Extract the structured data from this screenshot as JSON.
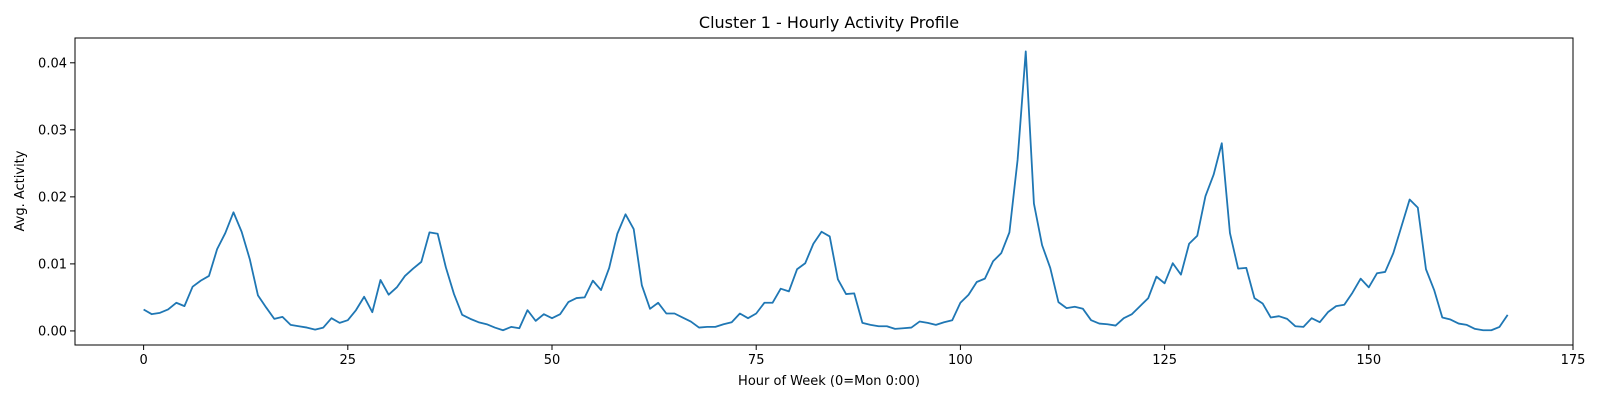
{
  "chart_data": {
    "type": "line",
    "title": "Cluster 1 - Hourly Activity Profile",
    "xlabel": "Hour of Week (0=Mon 0:00)",
    "ylabel": "Avg. Activity",
    "xlim": [
      -8.4,
      175
    ],
    "ylim": [
      -0.0021,
      0.0437
    ],
    "grid": false,
    "line_color": "#1f77b4",
    "x_ticks": [
      0,
      25,
      50,
      75,
      100,
      125,
      150,
      175
    ],
    "x_tick_labels": [
      "0",
      "25",
      "50",
      "75",
      "100",
      "125",
      "150",
      "175"
    ],
    "y_ticks": [
      0.0,
      0.01,
      0.02,
      0.03,
      0.04
    ],
    "y_tick_labels": [
      "0.00",
      "0.01",
      "0.02",
      "0.03",
      "0.04"
    ],
    "series": [
      {
        "x_start": 0,
        "values": [
          0.0032,
          0.0025,
          0.0027,
          0.0032,
          0.0042,
          0.0037,
          0.0066,
          0.0075,
          0.0082,
          0.0122,
          0.0146,
          0.0177,
          0.0148,
          0.0107,
          0.0053,
          0.0035,
          0.0018,
          0.0021,
          0.0009,
          0.0007,
          0.0005,
          0.0002,
          0.0005,
          0.0019,
          0.0012,
          0.0016,
          0.0031,
          0.0051,
          0.0028,
          0.0076,
          0.0054,
          0.0065,
          0.0082,
          0.0093,
          0.0103,
          0.0147,
          0.0145,
          0.0095,
          0.0055,
          0.0024,
          0.0018,
          0.0013,
          0.001,
          0.0005,
          0.0001,
          0.0006,
          0.0004,
          0.0031,
          0.0015,
          0.0025,
          0.0019,
          0.0025,
          0.0043,
          0.0049,
          0.005,
          0.0075,
          0.0061,
          0.0094,
          0.0145,
          0.0174,
          0.0152,
          0.0068,
          0.0033,
          0.0042,
          0.0026,
          0.0026,
          0.002,
          0.0014,
          0.0005,
          0.0006,
          0.0006,
          0.001,
          0.0013,
          0.0026,
          0.0019,
          0.0026,
          0.0042,
          0.0042,
          0.0063,
          0.0059,
          0.0092,
          0.0101,
          0.013,
          0.0148,
          0.0141,
          0.0077,
          0.0055,
          0.0056,
          0.0012,
          0.0009,
          0.0007,
          0.0007,
          0.0003,
          0.0004,
          0.0005,
          0.0014,
          0.0012,
          0.0009,
          0.0013,
          0.0016,
          0.0042,
          0.0054,
          0.0073,
          0.0078,
          0.0104,
          0.0116,
          0.0147,
          0.0255,
          0.0417,
          0.019,
          0.0128,
          0.0094,
          0.0043,
          0.0034,
          0.0036,
          0.0033,
          0.0016,
          0.0011,
          0.001,
          0.0008,
          0.0019,
          0.0025,
          0.0037,
          0.0049,
          0.0081,
          0.0071,
          0.0101,
          0.0084,
          0.013,
          0.0142,
          0.0201,
          0.0233,
          0.028,
          0.0146,
          0.0093,
          0.0094,
          0.0049,
          0.0041,
          0.002,
          0.0022,
          0.0018,
          0.0007,
          0.0006,
          0.0019,
          0.0013,
          0.0028,
          0.0037,
          0.0039,
          0.0057,
          0.0078,
          0.0065,
          0.0086,
          0.0088,
          0.0116,
          0.0156,
          0.0196,
          0.0184,
          0.0092,
          0.0061,
          0.002,
          0.0017,
          0.0011,
          0.0009,
          0.0003,
          0.0001,
          0.0001,
          0.0006,
          0.0024
        ]
      }
    ]
  }
}
